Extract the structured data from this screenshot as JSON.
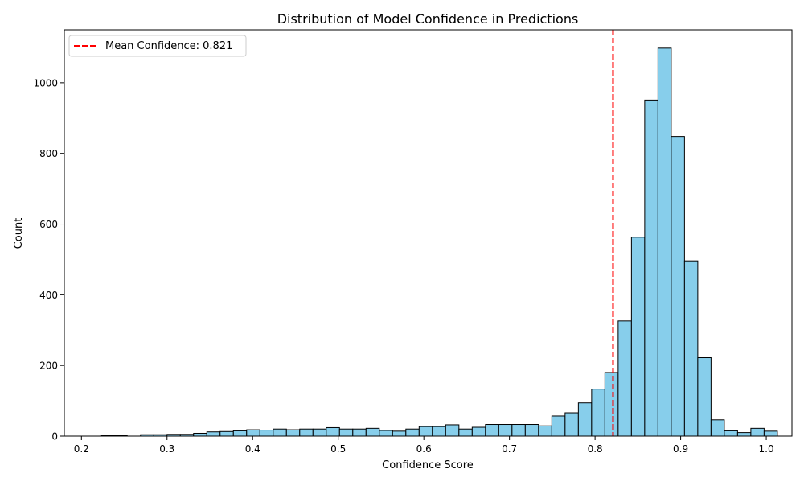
{
  "chart_data": {
    "type": "bar",
    "title": "Distribution of Model Confidence in Predictions",
    "xlabel": "Confidence Score",
    "ylabel": "Count",
    "xlim": [
      0.18,
      1.03
    ],
    "ylim": [
      0,
      1150
    ],
    "xticks": [
      "0.2",
      "0.3",
      "0.4",
      "0.5",
      "0.6",
      "0.7",
      "0.8",
      "0.9",
      "1.0"
    ],
    "yticks": [
      "0",
      "200",
      "400",
      "600",
      "800",
      "1000"
    ],
    "bins": {
      "start": 0.2225,
      "width": 0.0155,
      "counts": [
        2,
        2,
        0,
        4,
        4,
        5,
        5,
        8,
        12,
        13,
        15,
        18,
        17,
        20,
        18,
        20,
        20,
        24,
        20,
        20,
        22,
        16,
        14,
        20,
        27,
        27,
        32,
        20,
        25,
        33,
        33,
        33,
        33,
        29,
        57,
        66,
        94,
        133,
        180,
        326,
        563,
        951,
        1098,
        848,
        496,
        222,
        46,
        15,
        10,
        22,
        14
      ]
    },
    "bar_color": "#87CEEB",
    "bar_edge_color": "#000000",
    "mean_line": {
      "value": 0.821,
      "color": "#FF0000",
      "style": "dashed"
    },
    "legend": {
      "placement": "top-left",
      "entries": [
        "Mean Confidence: 0.821"
      ]
    },
    "grid": false
  }
}
